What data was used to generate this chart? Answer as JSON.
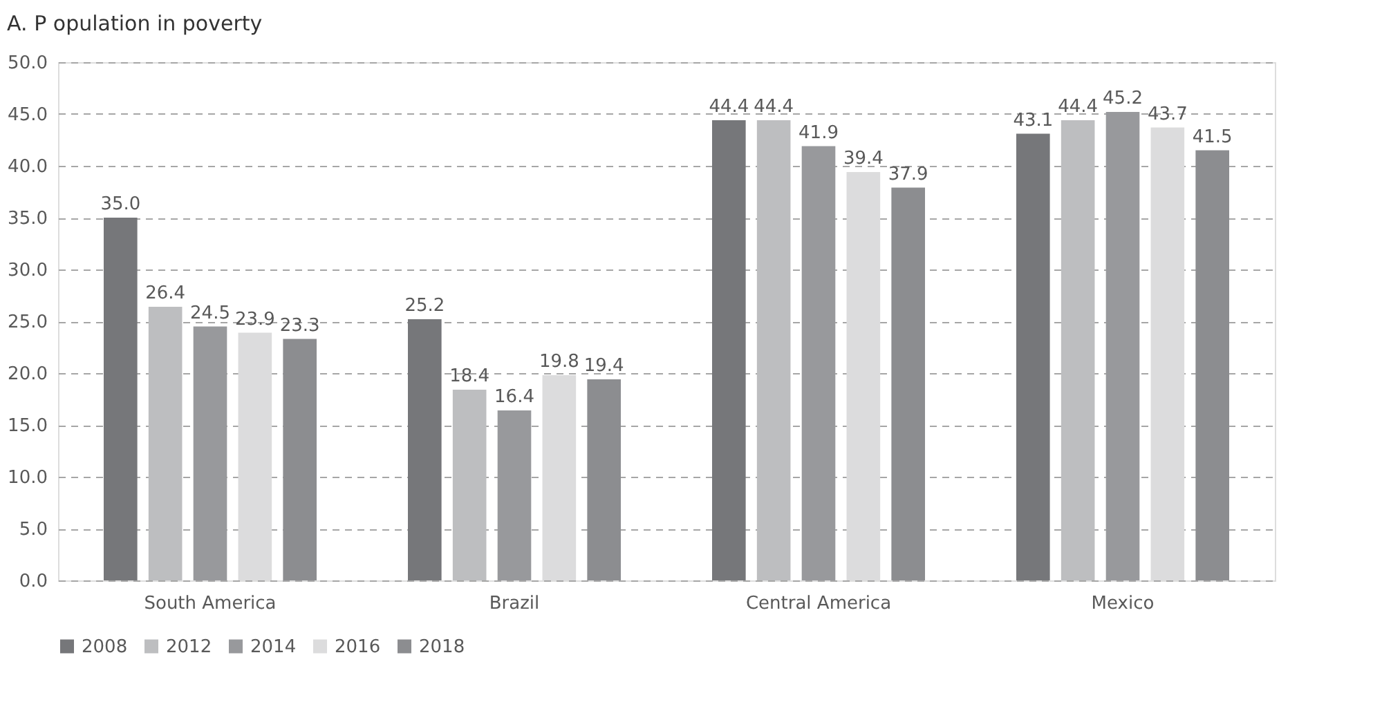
{
  "chart_data": {
    "type": "bar",
    "title": "A. P opulation in poverty",
    "categories": [
      "South America",
      "Brazil",
      "Central America",
      "Mexico"
    ],
    "series": [
      {
        "name": "2008",
        "color": "#76777a",
        "values": [
          35.0,
          25.2,
          44.4,
          43.1
        ]
      },
      {
        "name": "2012",
        "color": "#bdbec0",
        "values": [
          26.4,
          18.4,
          44.4,
          44.4
        ]
      },
      {
        "name": "2014",
        "color": "#98999c",
        "values": [
          24.5,
          16.4,
          41.9,
          45.2
        ]
      },
      {
        "name": "2016",
        "color": "#dcdcdd",
        "values": [
          23.9,
          19.8,
          39.4,
          43.7
        ]
      },
      {
        "name": "2018",
        "color": "#8c8d90",
        "values": [
          23.3,
          19.4,
          37.9,
          41.5
        ]
      }
    ],
    "ylim": [
      0,
      50
    ],
    "yticks": [
      {
        "value": 0,
        "label": "0.0"
      },
      {
        "value": 5,
        "label": "5.0"
      },
      {
        "value": 10,
        "label": "10.0"
      },
      {
        "value": 15,
        "label": "15.0"
      },
      {
        "value": 20,
        "label": "20.0"
      },
      {
        "value": 25,
        "label": "25.0"
      },
      {
        "value": 30,
        "label": "30.0"
      },
      {
        "value": 35,
        "label": "35.0"
      },
      {
        "value": 40,
        "label": "40.0"
      },
      {
        "value": 45,
        "label": "45.0"
      },
      {
        "value": 50,
        "label": "50.0"
      }
    ],
    "grid": "y",
    "legend": "bottom",
    "value_labels": [
      [
        "35.0",
        "25.2",
        "44.4",
        "43.1"
      ],
      [
        "26.4",
        "18.4",
        "44.4",
        "44.4"
      ],
      [
        "24.5",
        "16.4",
        "41.9",
        "45.2"
      ],
      [
        "23.9",
        "19.8",
        "39.4",
        "43.7"
      ],
      [
        "23.3",
        "19.4",
        "37.9",
        "41.5"
      ]
    ]
  }
}
